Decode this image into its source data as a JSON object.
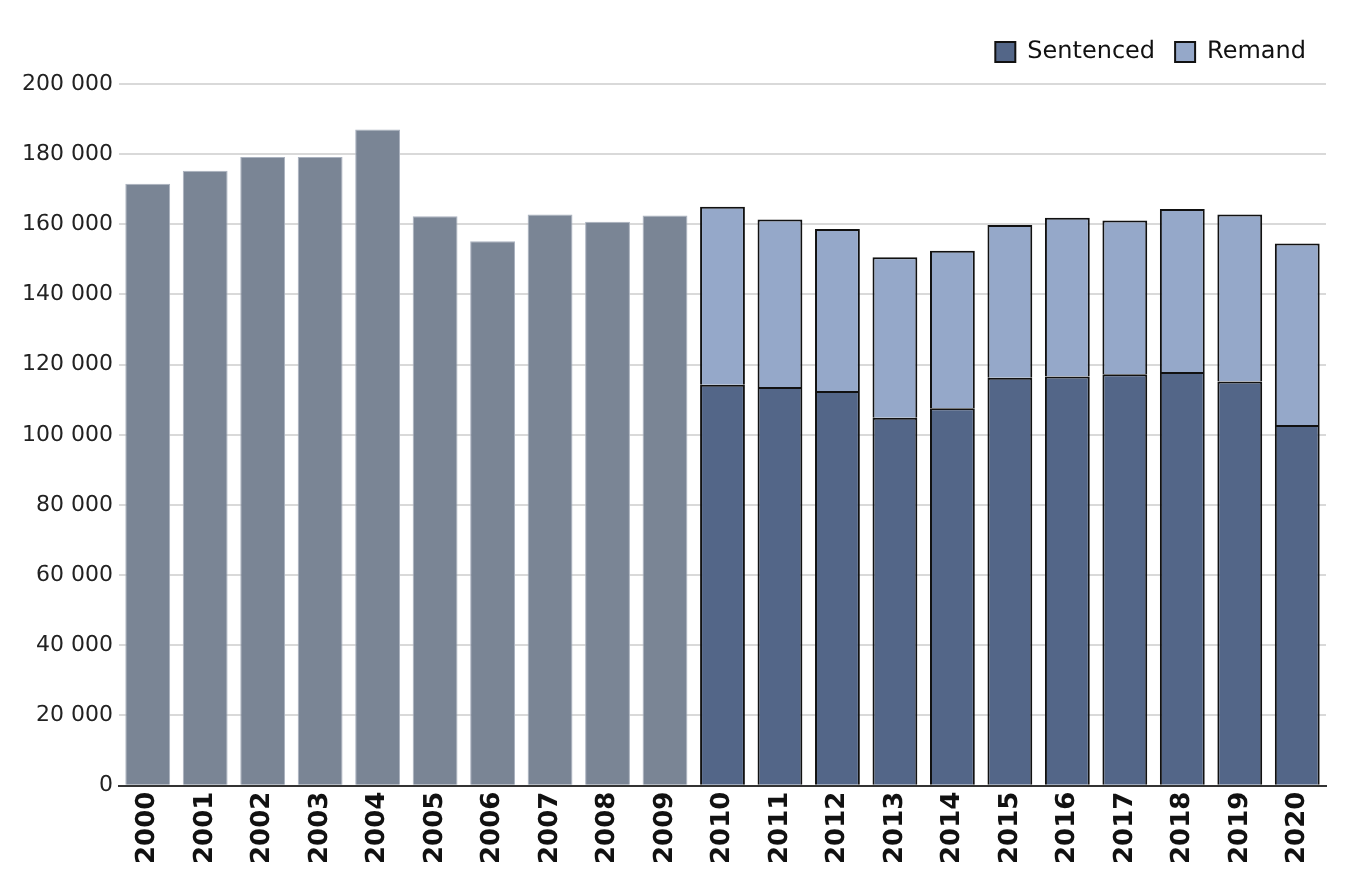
{
  "chart_data": {
    "type": "bar",
    "stacked": true,
    "categories": [
      "2000",
      "2001",
      "2002",
      "2003",
      "2004",
      "2005",
      "2006",
      "2007",
      "2008",
      "2009",
      "2010",
      "2011",
      "2012",
      "2013",
      "2014",
      "2015",
      "2016",
      "2017",
      "2018",
      "2019",
      "2020"
    ],
    "series": [
      {
        "color": "#7a8595",
        "values": [
          171600,
          175300,
          179200,
          179200,
          187000,
          162300,
          155200,
          162800,
          160700,
          162500,
          null,
          null,
          null,
          null,
          null,
          null,
          null,
          null,
          null,
          null,
          null
        ]
      },
      {
        "name": "Sentenced",
        "color": "#536688",
        "values": [
          null,
          null,
          null,
          null,
          null,
          null,
          null,
          null,
          null,
          null,
          114300,
          113600,
          112500,
          104900,
          107600,
          116300,
          116600,
          117300,
          117900,
          115200,
          102800
        ]
      },
      {
        "name": "Remand",
        "color": "#95a8c9",
        "values": [
          null,
          null,
          null,
          null,
          null,
          null,
          null,
          null,
          null,
          null,
          50700,
          47800,
          46200,
          45700,
          44900,
          43500,
          45300,
          43800,
          46500,
          47600,
          51700
        ]
      }
    ],
    "ylim": [
      0,
      200000
    ],
    "yticks": [
      {
        "value": 0,
        "label": "0"
      },
      {
        "value": 20000,
        "label": "20 000"
      },
      {
        "value": 40000,
        "label": "40 000"
      },
      {
        "value": 60000,
        "label": "60 000"
      },
      {
        "value": 80000,
        "label": "80 000"
      },
      {
        "value": 100000,
        "label": "100 000"
      },
      {
        "value": 120000,
        "label": "120 000"
      },
      {
        "value": 140000,
        "label": "140 000"
      },
      {
        "value": 160000,
        "label": "160 000"
      },
      {
        "value": 180000,
        "label": "180 000"
      },
      {
        "value": 200000,
        "label": "200 000"
      }
    ],
    "grid": "y",
    "legend": "top right"
  }
}
